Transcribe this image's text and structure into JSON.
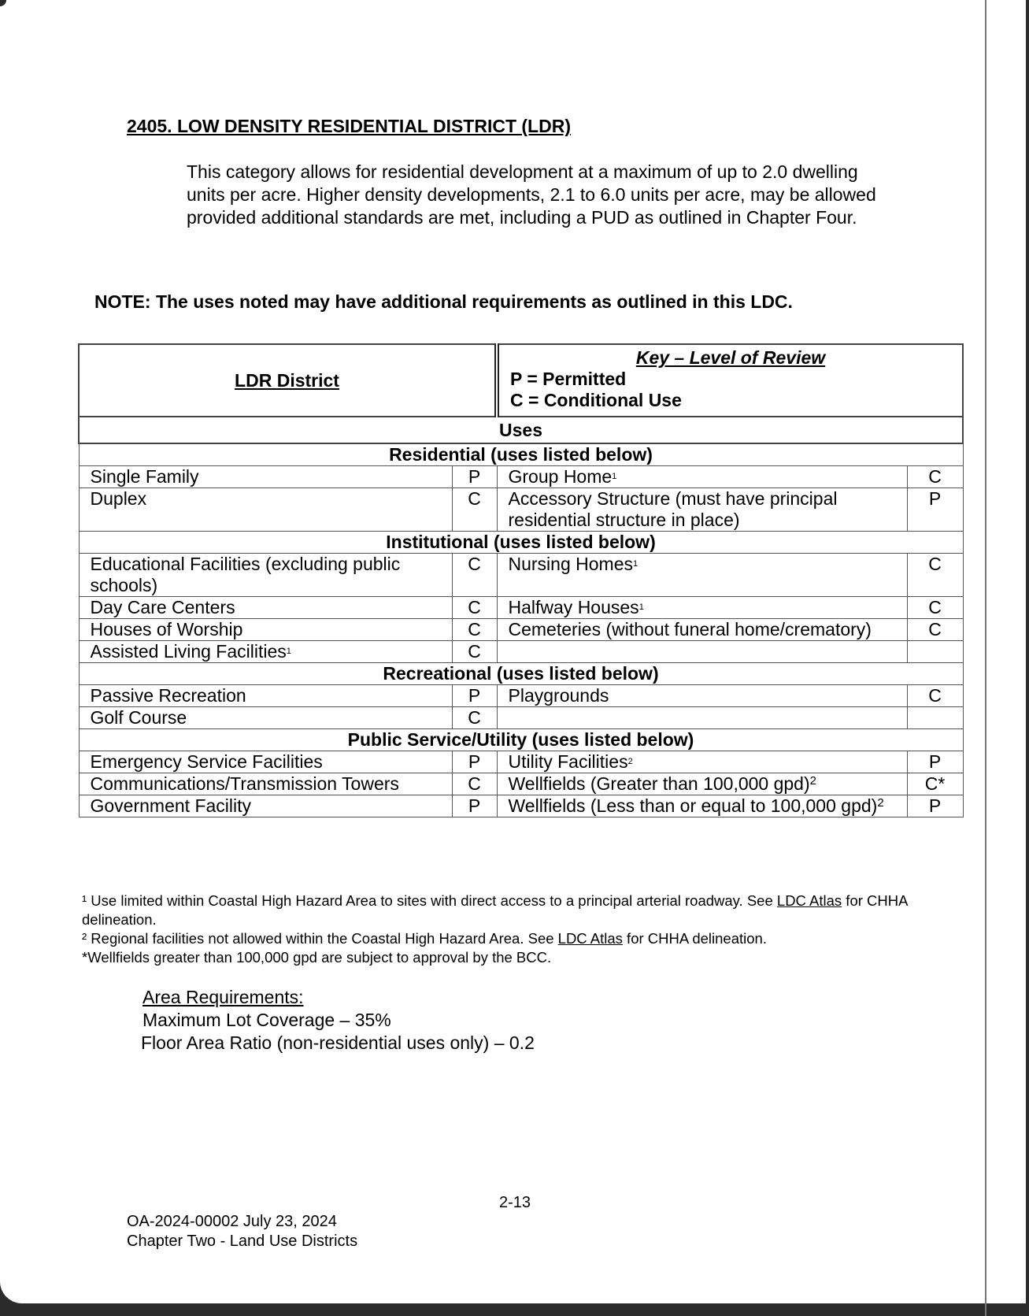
{
  "title": "2405. LOW DENSITY RESIDENTIAL DISTRICT (LDR)",
  "intro": "This category allows for residential development at a maximum of up to 2.0 dwelling units per acre. Higher density developments, 2.1 to 6.0 units per acre, may be allowed provided additional standards are met, including a PUD as outlined in Chapter Four.",
  "note": "NOTE:  The uses noted may have additional requirements as outlined in this LDC.",
  "table": {
    "district": "LDR District",
    "key_title": "Key – Level of Review",
    "key_p": "P = Permitted",
    "key_c": "C = Conditional Use",
    "uses": "Uses",
    "sections": [
      {
        "heading": "Residential (uses listed below)",
        "rows": [
          {
            "left": "Single Family",
            "lv": "P",
            "right": "Group Home",
            "rsup": "1",
            "rv": "C"
          },
          {
            "left": "Duplex",
            "lv": "C",
            "right": "Accessory Structure (must have principal residential structure in place)",
            "rv": "P"
          }
        ]
      },
      {
        "heading": "Institutional (uses listed below)",
        "rows": [
          {
            "left": "Educational Facilities (excluding public schools)",
            "lv": "C",
            "right": "Nursing Homes",
            "rsup": "1",
            "rv": "C"
          },
          {
            "left": "Day Care Centers",
            "lv": "C",
            "right": "Halfway Houses",
            "rsup": "1",
            "rv": "C"
          },
          {
            "left": "Houses of Worship",
            "lv": "C",
            "right": "Cemeteries (without funeral home/crematory)",
            "rv": "C"
          },
          {
            "left": "Assisted Living Facilities",
            "lsup": "1",
            "lv": "C",
            "right": "",
            "rv": ""
          }
        ]
      },
      {
        "heading": "Recreational (uses listed below)",
        "rows": [
          {
            "left": "Passive Recreation",
            "lv": "P",
            "right": "Playgrounds",
            "rv": "C"
          },
          {
            "left": "Golf Course",
            "lv": "C",
            "right": "",
            "rv": ""
          }
        ]
      },
      {
        "heading": "Public Service/Utility (uses listed below)",
        "rows": [
          {
            "left": "Emergency Service Facilities",
            "lv": "P",
            "right": "Utility Facilities",
            "rsup": "2",
            "rv": "P"
          },
          {
            "left": "Communications/Transmission Towers",
            "lv": "C",
            "right": "Wellfields (Greater than 100,000 gpd)",
            "rsup2": "2",
            "rv": "C*"
          },
          {
            "left": "Government Facility",
            "lv": "P",
            "right": "Wellfields (Less than or equal to 100,000 gpd)",
            "rsup2": "2",
            "rv": "P"
          }
        ]
      }
    ]
  },
  "footnotes": {
    "f1_pre": "¹ Use limited within Coastal High Hazard Area to sites with direct access to a principal arterial roadway. See ",
    "f1_link": "LDC Atlas",
    "f1_post": " for CHHA delineation.",
    "f2_pre": "² Regional facilities not allowed within the Coastal High Hazard Area. See ",
    "f2_link": "LDC Atlas",
    "f2_post": " for CHHA delineation.",
    "f3": "*Wellfields greater than 100,000 gpd are subject to approval by the BCC."
  },
  "area": {
    "heading": "Area Requirements:",
    "coverage": "Maximum Lot Coverage – 35%",
    "far": "Floor Area Ratio (non-residential uses only) – 0.2"
  },
  "page_number": "2-13",
  "footer": {
    "line1": "OA-2024-00002 July 23, 2024",
    "line2": "Chapter Two - Land Use Districts"
  }
}
